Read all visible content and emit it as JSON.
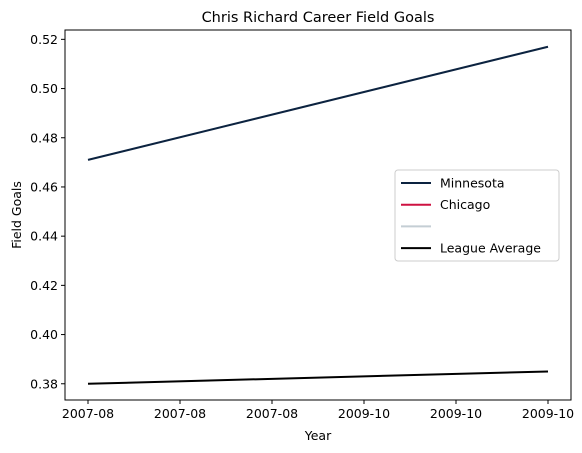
{
  "chart_data": {
    "type": "line",
    "title": "Chris Richard  Career Field Goals",
    "xlabel": "Year",
    "ylabel": "Field Goals",
    "x_tick_labels": [
      "2007-08",
      "2007-08",
      "2007-08",
      "2009-10",
      "2009-10",
      "2009-10"
    ],
    "x": [
      0,
      1
    ],
    "xlim": [
      -0.05,
      1.05
    ],
    "ylim": [
      0.3734,
      0.5238
    ],
    "y_ticks": [
      0.38,
      0.4,
      0.42,
      0.44,
      0.46,
      0.48,
      0.5,
      0.52
    ],
    "y_tick_labels": [
      "0.38",
      "0.40",
      "0.42",
      "0.44",
      "0.46",
      "0.48",
      "0.50",
      "0.52"
    ],
    "grid": false,
    "legend_position": "right",
    "series": [
      {
        "name": "Minnesota",
        "color": "#0c2340",
        "values": [
          0.471,
          0.517
        ]
      },
      {
        "name": "League Average",
        "color": "#000000",
        "values": [
          0.38,
          0.385
        ]
      }
    ],
    "legend": [
      {
        "label": "Minnesota",
        "color": "#0c2340"
      },
      {
        "label": "Chicago",
        "color": "#ce1141"
      },
      {
        "label": "",
        "color": "#c4ced4"
      },
      {
        "label": "League Average",
        "color": "#000000"
      }
    ]
  }
}
